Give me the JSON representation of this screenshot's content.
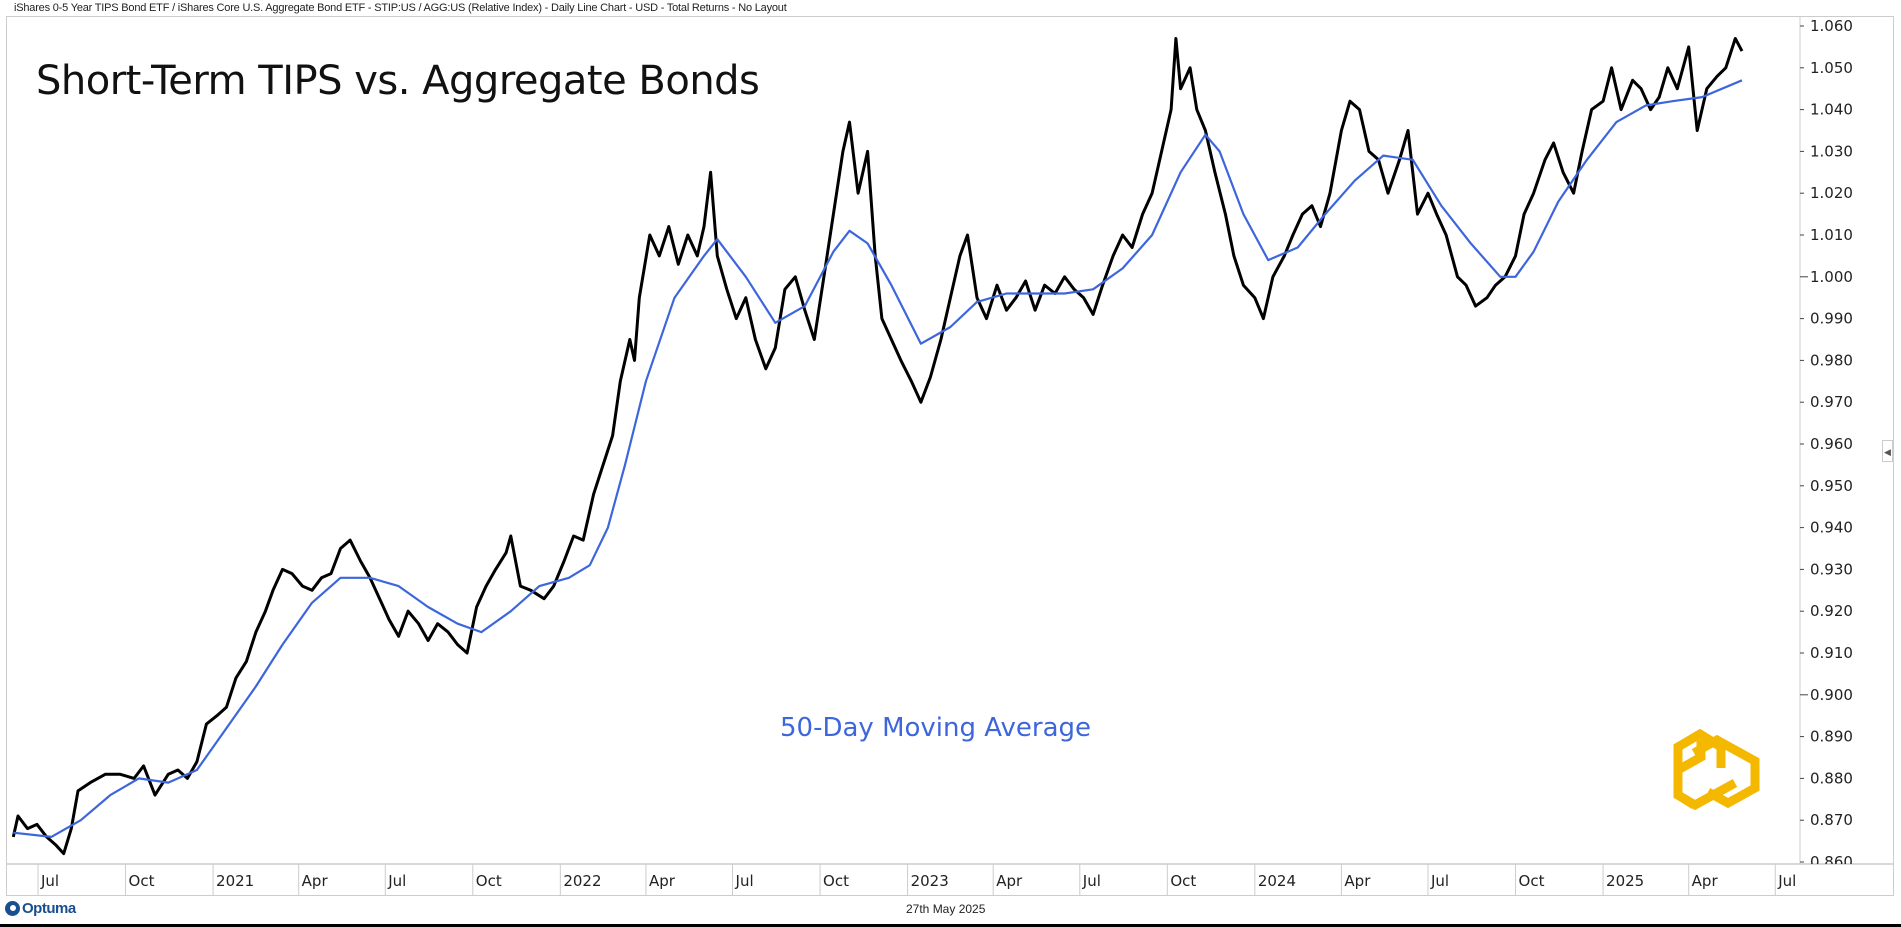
{
  "header": {
    "description": "iShares 0-5 Year TIPS Bond ETF / iShares Core U.S. Aggregate Bond ETF - STIP:US / AGG:US (Relative Index) - Daily Line Chart - USD - Total Returns - No Layout"
  },
  "footer": {
    "date": "27th May 2025",
    "brand": "Optuma"
  },
  "collapse_icon": "chevron-left-icon",
  "colors": {
    "price": "#000000",
    "ma": "#3d66dc",
    "logo": "#f5b800",
    "grid": "#cccccc"
  },
  "chart_data": {
    "type": "line",
    "title": "Short-Term TIPS vs. Aggregate Bonds",
    "annotation": "50-Day Moving Average",
    "xlabel": "",
    "ylabel": "",
    "ylim": [
      0.86,
      1.06
    ],
    "y_ticks": [
      "1.060",
      "1.050",
      "1.040",
      "1.030",
      "1.020",
      "1.010",
      "1.000",
      "0.990",
      "0.980",
      "0.970",
      "0.960",
      "0.950",
      "0.940",
      "0.930",
      "0.920",
      "0.910",
      "0.900",
      "0.890",
      "0.880",
      "0.870",
      "0.860"
    ],
    "x_ticks": [
      {
        "label": "Jul",
        "date": "2020-07-01"
      },
      {
        "label": "Oct",
        "date": "2020-10-01"
      },
      {
        "label": "2021",
        "date": "2021-01-01"
      },
      {
        "label": "Apr",
        "date": "2021-04-01"
      },
      {
        "label": "Jul",
        "date": "2021-07-01"
      },
      {
        "label": "Oct",
        "date": "2021-10-01"
      },
      {
        "label": "2022",
        "date": "2022-01-01"
      },
      {
        "label": "Apr",
        "date": "2022-04-01"
      },
      {
        "label": "Jul",
        "date": "2022-07-01"
      },
      {
        "label": "Oct",
        "date": "2022-10-01"
      },
      {
        "label": "2023",
        "date": "2023-01-01"
      },
      {
        "label": "Apr",
        "date": "2023-04-01"
      },
      {
        "label": "Jul",
        "date": "2023-07-01"
      },
      {
        "label": "Oct",
        "date": "2023-10-01"
      },
      {
        "label": "2024",
        "date": "2024-01-01"
      },
      {
        "label": "Apr",
        "date": "2024-04-01"
      },
      {
        "label": "Jul",
        "date": "2024-07-01"
      },
      {
        "label": "Oct",
        "date": "2024-10-01"
      },
      {
        "label": "2025",
        "date": "2025-01-01"
      },
      {
        "label": "Apr",
        "date": "2025-04-01"
      },
      {
        "label": "Jul",
        "date": "2025-07-01"
      }
    ],
    "series": [
      {
        "name": "STIP:US / AGG:US",
        "points": [
          [
            "2020-06-05",
            0.866
          ],
          [
            "2020-06-10",
            0.871
          ],
          [
            "2020-06-20",
            0.868
          ],
          [
            "2020-06-30",
            0.869
          ],
          [
            "2020-07-10",
            0.866
          ],
          [
            "2020-07-20",
            0.864
          ],
          [
            "2020-07-28",
            0.862
          ],
          [
            "2020-08-05",
            0.868
          ],
          [
            "2020-08-12",
            0.877
          ],
          [
            "2020-08-25",
            0.879
          ],
          [
            "2020-09-10",
            0.881
          ],
          [
            "2020-09-25",
            0.881
          ],
          [
            "2020-10-10",
            0.88
          ],
          [
            "2020-10-20",
            0.883
          ],
          [
            "2020-11-01",
            0.876
          ],
          [
            "2020-11-15",
            0.881
          ],
          [
            "2020-11-25",
            0.882
          ],
          [
            "2020-12-05",
            0.88
          ],
          [
            "2020-12-15",
            0.884
          ],
          [
            "2020-12-25",
            0.893
          ],
          [
            "2021-01-05",
            0.895
          ],
          [
            "2021-01-15",
            0.897
          ],
          [
            "2021-01-25",
            0.904
          ],
          [
            "2021-02-05",
            0.908
          ],
          [
            "2021-02-15",
            0.915
          ],
          [
            "2021-02-25",
            0.92
          ],
          [
            "2021-03-05",
            0.925
          ],
          [
            "2021-03-15",
            0.93
          ],
          [
            "2021-03-25",
            0.929
          ],
          [
            "2021-04-05",
            0.926
          ],
          [
            "2021-04-15",
            0.925
          ],
          [
            "2021-04-25",
            0.928
          ],
          [
            "2021-05-05",
            0.929
          ],
          [
            "2021-05-15",
            0.935
          ],
          [
            "2021-05-25",
            0.937
          ],
          [
            "2021-06-05",
            0.932
          ],
          [
            "2021-06-15",
            0.928
          ],
          [
            "2021-06-25",
            0.923
          ],
          [
            "2021-07-05",
            0.918
          ],
          [
            "2021-07-15",
            0.914
          ],
          [
            "2021-07-25",
            0.92
          ],
          [
            "2021-08-05",
            0.917
          ],
          [
            "2021-08-15",
            0.913
          ],
          [
            "2021-08-25",
            0.917
          ],
          [
            "2021-09-05",
            0.915
          ],
          [
            "2021-09-15",
            0.912
          ],
          [
            "2021-09-25",
            0.91
          ],
          [
            "2021-10-05",
            0.921
          ],
          [
            "2021-10-15",
            0.926
          ],
          [
            "2021-10-25",
            0.93
          ],
          [
            "2021-11-05",
            0.934
          ],
          [
            "2021-11-10",
            0.938
          ],
          [
            "2021-11-20",
            0.926
          ],
          [
            "2021-12-01",
            0.925
          ],
          [
            "2021-12-15",
            0.923
          ],
          [
            "2021-12-25",
            0.926
          ],
          [
            "2022-01-05",
            0.932
          ],
          [
            "2022-01-15",
            0.938
          ],
          [
            "2022-01-25",
            0.937
          ],
          [
            "2022-02-05",
            0.948
          ],
          [
            "2022-02-15",
            0.955
          ],
          [
            "2022-02-25",
            0.962
          ],
          [
            "2022-03-05",
            0.975
          ],
          [
            "2022-03-15",
            0.985
          ],
          [
            "2022-03-20",
            0.98
          ],
          [
            "2022-03-25",
            0.995
          ],
          [
            "2022-04-05",
            1.01
          ],
          [
            "2022-04-15",
            1.005
          ],
          [
            "2022-04-25",
            1.012
          ],
          [
            "2022-05-05",
            1.003
          ],
          [
            "2022-05-15",
            1.01
          ],
          [
            "2022-05-25",
            1.005
          ],
          [
            "2022-06-01",
            1.012
          ],
          [
            "2022-06-08",
            1.025
          ],
          [
            "2022-06-15",
            1.005
          ],
          [
            "2022-06-25",
            0.997
          ],
          [
            "2022-07-05",
            0.99
          ],
          [
            "2022-07-15",
            0.995
          ],
          [
            "2022-07-25",
            0.985
          ],
          [
            "2022-08-05",
            0.978
          ],
          [
            "2022-08-15",
            0.983
          ],
          [
            "2022-08-25",
            0.997
          ],
          [
            "2022-09-05",
            1.0
          ],
          [
            "2022-09-15",
            0.992
          ],
          [
            "2022-09-25",
            0.985
          ],
          [
            "2022-10-05",
            1.0
          ],
          [
            "2022-10-15",
            1.015
          ],
          [
            "2022-10-25",
            1.03
          ],
          [
            "2022-11-01",
            1.037
          ],
          [
            "2022-11-10",
            1.02
          ],
          [
            "2022-11-20",
            1.03
          ],
          [
            "2022-11-28",
            1.005
          ],
          [
            "2022-12-05",
            0.99
          ],
          [
            "2022-12-15",
            0.985
          ],
          [
            "2022-12-25",
            0.98
          ],
          [
            "2023-01-05",
            0.975
          ],
          [
            "2023-01-15",
            0.97
          ],
          [
            "2023-01-25",
            0.976
          ],
          [
            "2023-02-05",
            0.985
          ],
          [
            "2023-02-15",
            0.995
          ],
          [
            "2023-02-25",
            1.005
          ],
          [
            "2023-03-05",
            1.01
          ],
          [
            "2023-03-15",
            0.995
          ],
          [
            "2023-03-25",
            0.99
          ],
          [
            "2023-04-05",
            0.998
          ],
          [
            "2023-04-15",
            0.992
          ],
          [
            "2023-04-25",
            0.995
          ],
          [
            "2023-05-05",
            0.999
          ],
          [
            "2023-05-15",
            0.992
          ],
          [
            "2023-05-25",
            0.998
          ],
          [
            "2023-06-05",
            0.996
          ],
          [
            "2023-06-15",
            1.0
          ],
          [
            "2023-06-25",
            0.997
          ],
          [
            "2023-07-05",
            0.995
          ],
          [
            "2023-07-15",
            0.991
          ],
          [
            "2023-07-25",
            0.998
          ],
          [
            "2023-08-05",
            1.005
          ],
          [
            "2023-08-15",
            1.01
          ],
          [
            "2023-08-25",
            1.007
          ],
          [
            "2023-09-05",
            1.015
          ],
          [
            "2023-09-15",
            1.02
          ],
          [
            "2023-09-25",
            1.03
          ],
          [
            "2023-10-05",
            1.04
          ],
          [
            "2023-10-10",
            1.057
          ],
          [
            "2023-10-15",
            1.045
          ],
          [
            "2023-10-25",
            1.05
          ],
          [
            "2023-11-01",
            1.04
          ],
          [
            "2023-11-10",
            1.035
          ],
          [
            "2023-11-20",
            1.025
          ],
          [
            "2023-12-01",
            1.015
          ],
          [
            "2023-12-10",
            1.005
          ],
          [
            "2023-12-20",
            0.998
          ],
          [
            "2024-01-01",
            0.995
          ],
          [
            "2024-01-10",
            0.99
          ],
          [
            "2024-01-20",
            1.0
          ],
          [
            "2024-02-01",
            1.005
          ],
          [
            "2024-02-10",
            1.01
          ],
          [
            "2024-02-20",
            1.015
          ],
          [
            "2024-03-01",
            1.017
          ],
          [
            "2024-03-10",
            1.012
          ],
          [
            "2024-03-20",
            1.02
          ],
          [
            "2024-04-01",
            1.035
          ],
          [
            "2024-04-10",
            1.042
          ],
          [
            "2024-04-20",
            1.04
          ],
          [
            "2024-04-30",
            1.03
          ],
          [
            "2024-05-10",
            1.028
          ],
          [
            "2024-05-20",
            1.02
          ],
          [
            "2024-06-01",
            1.028
          ],
          [
            "2024-06-10",
            1.035
          ],
          [
            "2024-06-20",
            1.015
          ],
          [
            "2024-07-01",
            1.02
          ],
          [
            "2024-07-10",
            1.015
          ],
          [
            "2024-07-20",
            1.01
          ],
          [
            "2024-08-01",
            1.0
          ],
          [
            "2024-08-10",
            0.998
          ],
          [
            "2024-08-20",
            0.993
          ],
          [
            "2024-09-01",
            0.995
          ],
          [
            "2024-09-10",
            0.998
          ],
          [
            "2024-09-20",
            1.0
          ],
          [
            "2024-10-01",
            1.005
          ],
          [
            "2024-10-10",
            1.015
          ],
          [
            "2024-10-20",
            1.02
          ],
          [
            "2024-11-01",
            1.028
          ],
          [
            "2024-11-10",
            1.032
          ],
          [
            "2024-11-20",
            1.025
          ],
          [
            "2024-12-01",
            1.02
          ],
          [
            "2024-12-10",
            1.03
          ],
          [
            "2024-12-20",
            1.04
          ],
          [
            "2025-01-01",
            1.042
          ],
          [
            "2025-01-10",
            1.05
          ],
          [
            "2025-01-20",
            1.04
          ],
          [
            "2025-02-01",
            1.047
          ],
          [
            "2025-02-10",
            1.045
          ],
          [
            "2025-02-20",
            1.04
          ],
          [
            "2025-03-01",
            1.043
          ],
          [
            "2025-03-10",
            1.05
          ],
          [
            "2025-03-20",
            1.045
          ],
          [
            "2025-04-01",
            1.055
          ],
          [
            "2025-04-10",
            1.035
          ],
          [
            "2025-04-20",
            1.045
          ],
          [
            "2025-05-01",
            1.048
          ],
          [
            "2025-05-10",
            1.05
          ],
          [
            "2025-05-20",
            1.057
          ],
          [
            "2025-05-27",
            1.054
          ]
        ]
      },
      {
        "name": "50-Day Moving Average",
        "points": [
          [
            "2020-06-05",
            0.867
          ],
          [
            "2020-07-15",
            0.866
          ],
          [
            "2020-08-15",
            0.87
          ],
          [
            "2020-09-15",
            0.876
          ],
          [
            "2020-10-15",
            0.88
          ],
          [
            "2020-11-15",
            0.879
          ],
          [
            "2020-12-15",
            0.882
          ],
          [
            "2021-01-15",
            0.892
          ],
          [
            "2021-02-15",
            0.902
          ],
          [
            "2021-03-15",
            0.912
          ],
          [
            "2021-04-15",
            0.922
          ],
          [
            "2021-05-15",
            0.928
          ],
          [
            "2021-06-15",
            0.928
          ],
          [
            "2021-07-15",
            0.926
          ],
          [
            "2021-08-15",
            0.921
          ],
          [
            "2021-09-15",
            0.917
          ],
          [
            "2021-10-10",
            0.915
          ],
          [
            "2021-11-10",
            0.92
          ],
          [
            "2021-12-10",
            0.926
          ],
          [
            "2022-01-10",
            0.928
          ],
          [
            "2022-02-01",
            0.931
          ],
          [
            "2022-02-20",
            0.94
          ],
          [
            "2022-03-10",
            0.955
          ],
          [
            "2022-04-01",
            0.975
          ],
          [
            "2022-05-01",
            0.995
          ],
          [
            "2022-06-01",
            1.005
          ],
          [
            "2022-06-15",
            1.009
          ],
          [
            "2022-07-15",
            1.0
          ],
          [
            "2022-08-15",
            0.989
          ],
          [
            "2022-09-15",
            0.993
          ],
          [
            "2022-10-15",
            1.006
          ],
          [
            "2022-11-01",
            1.011
          ],
          [
            "2022-11-20",
            1.008
          ],
          [
            "2022-12-15",
            0.998
          ],
          [
            "2023-01-15",
            0.984
          ],
          [
            "2023-02-15",
            0.988
          ],
          [
            "2023-03-15",
            0.994
          ],
          [
            "2023-04-15",
            0.996
          ],
          [
            "2023-05-15",
            0.996
          ],
          [
            "2023-06-15",
            0.996
          ],
          [
            "2023-07-15",
            0.997
          ],
          [
            "2023-08-15",
            1.002
          ],
          [
            "2023-09-15",
            1.01
          ],
          [
            "2023-10-15",
            1.025
          ],
          [
            "2023-11-10",
            1.034
          ],
          [
            "2023-11-25",
            1.03
          ],
          [
            "2023-12-20",
            1.015
          ],
          [
            "2024-01-15",
            1.004
          ],
          [
            "2024-02-15",
            1.007
          ],
          [
            "2024-03-15",
            1.015
          ],
          [
            "2024-04-15",
            1.023
          ],
          [
            "2024-05-15",
            1.029
          ],
          [
            "2024-06-15",
            1.028
          ],
          [
            "2024-07-15",
            1.017
          ],
          [
            "2024-08-15",
            1.008
          ],
          [
            "2024-09-15",
            1.0
          ],
          [
            "2024-10-01",
            1.0
          ],
          [
            "2024-10-20",
            1.006
          ],
          [
            "2024-11-15",
            1.018
          ],
          [
            "2024-12-15",
            1.028
          ],
          [
            "2025-01-15",
            1.037
          ],
          [
            "2025-02-15",
            1.041
          ],
          [
            "2025-03-15",
            1.042
          ],
          [
            "2025-04-15",
            1.043
          ],
          [
            "2025-05-27",
            1.047
          ]
        ]
      }
    ]
  }
}
